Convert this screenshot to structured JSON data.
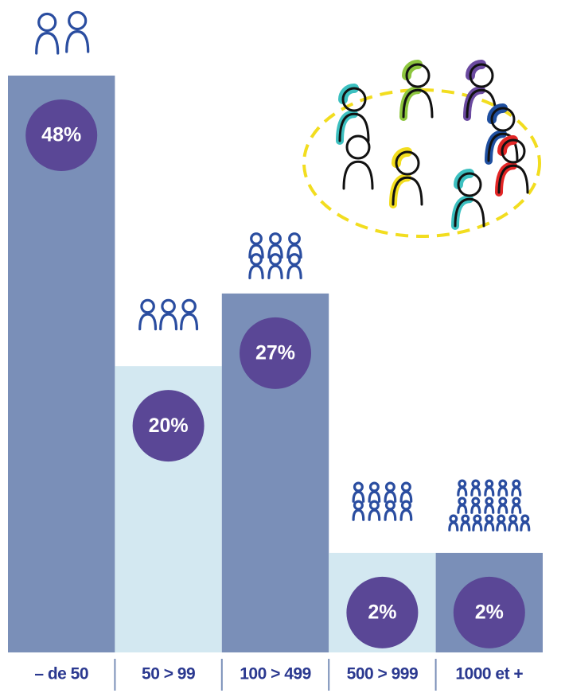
{
  "chart_data": {
    "type": "bar",
    "categories": [
      "– de 50",
      "50 > 99",
      "100 > 499",
      "500 > 999",
      "1000 et +"
    ],
    "values": [
      48,
      20,
      27,
      2,
      2
    ],
    "value_labels": [
      "48%",
      "20%",
      "27%",
      "2%",
      "2%"
    ],
    "colors": [
      "#7a8fb8",
      "#d3e8f1",
      "#7a8fb8",
      "#d3e8f1",
      "#7a8fb8"
    ]
  }
}
